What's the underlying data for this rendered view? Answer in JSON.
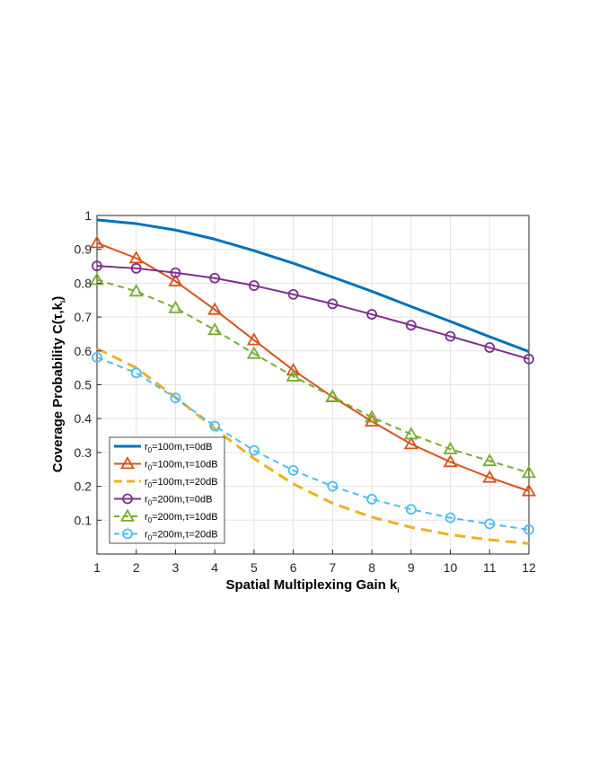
{
  "chart_data": {
    "type": "line",
    "xlabel": "Spatial Multiplexing Gain k",
    "xlabel_sub": "i",
    "ylabel": "Coverage Probability C(τ,k",
    "ylabel_sub": "i",
    "ylabel_close": ")",
    "xlim": [
      1,
      12
    ],
    "ylim": [
      0,
      1
    ],
    "xticks": [
      1,
      2,
      3,
      4,
      5,
      6,
      7,
      8,
      9,
      10,
      11,
      12
    ],
    "yticks": [
      0.1,
      0.2,
      0.3,
      0.4,
      0.5,
      0.6,
      0.7,
      0.8,
      0.9,
      1
    ],
    "ytick_labels": [
      "0.1",
      "0.2",
      "0.3",
      "0.4",
      "0.5",
      "0.6",
      "0.7",
      "0.8",
      "0.9",
      "1"
    ],
    "grid": true,
    "legend_position": "bottom-left",
    "x": [
      1,
      2,
      3,
      4,
      5,
      6,
      7,
      8,
      9,
      10,
      11,
      12
    ],
    "series": [
      {
        "legend": {
          "r": "r",
          "sub": "0",
          "rest": "=100m,τ=0dB"
        },
        "color": "#0072BD",
        "style": "solid",
        "marker": "none",
        "width": 3,
        "values": [
          0.987,
          0.976,
          0.957,
          0.93,
          0.896,
          0.859,
          0.818,
          0.776,
          0.731,
          0.687,
          0.642,
          0.598
        ]
      },
      {
        "legend": {
          "r": "r",
          "sub": "0",
          "rest": "=100m,τ=10dB"
        },
        "color": "#D95319",
        "style": "solid",
        "marker": "triangle",
        "width": 2,
        "values": [
          0.919,
          0.874,
          0.806,
          0.722,
          0.632,
          0.543,
          0.464,
          0.392,
          0.325,
          0.272,
          0.226,
          0.186
        ]
      },
      {
        "legend": {
          "r": "r",
          "sub": "0",
          "rest": "=100m,τ=20dB"
        },
        "color": "#EDB120",
        "style": "dash",
        "marker": "none",
        "width": 3,
        "values": [
          0.607,
          0.55,
          0.463,
          0.37,
          0.282,
          0.207,
          0.15,
          0.109,
          0.079,
          0.057,
          0.042,
          0.031
        ]
      },
      {
        "legend": {
          "r": "r",
          "sub": "0",
          "rest": "=200m,τ=0dB"
        },
        "color": "#7E2F8E",
        "style": "solid",
        "marker": "circle",
        "width": 2,
        "values": [
          0.851,
          0.844,
          0.831,
          0.815,
          0.793,
          0.767,
          0.739,
          0.708,
          0.676,
          0.643,
          0.61,
          0.576
        ]
      },
      {
        "legend": {
          "r": "r",
          "sub": "0",
          "rest": "=200m,τ=10dB"
        },
        "color": "#77AC30",
        "style": "dash",
        "marker": "triangle",
        "width": 2,
        "values": [
          0.81,
          0.776,
          0.727,
          0.662,
          0.592,
          0.525,
          0.465,
          0.404,
          0.354,
          0.31,
          0.275,
          0.24
        ]
      },
      {
        "legend": {
          "r": "r",
          "sub": "0",
          "rest": "=200m,τ=20dB"
        },
        "color": "#4DBEEE",
        "style": "dash",
        "marker": "circle",
        "width": 2,
        "values": [
          0.581,
          0.535,
          0.461,
          0.378,
          0.306,
          0.247,
          0.2,
          0.162,
          0.132,
          0.107,
          0.089,
          0.072
        ]
      }
    ]
  }
}
